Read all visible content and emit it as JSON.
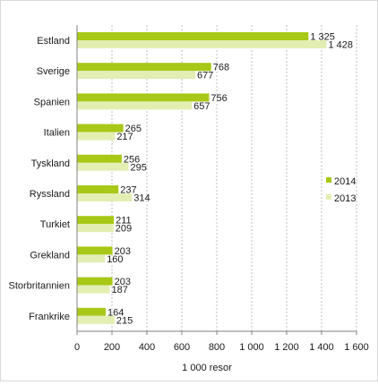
{
  "chart_data": {
    "type": "bar",
    "orientation": "horizontal",
    "categories": [
      "Estland",
      "Sverige",
      "Spanien",
      "Italien",
      "Tyskland",
      "Ryssland",
      "Turkiet",
      "Grekland",
      "Storbritannien",
      "Frankrike"
    ],
    "series": [
      {
        "name": "2014",
        "color": "#a8c818",
        "values": [
          1325,
          768,
          756,
          265,
          256,
          237,
          211,
          203,
          203,
          164
        ],
        "labels": [
          "1 325",
          "768",
          "756",
          "265",
          "256",
          "237",
          "211",
          "203",
          "203",
          "164"
        ]
      },
      {
        "name": "2013",
        "color": "#e3eeb2",
        "values": [
          1428,
          677,
          657,
          217,
          295,
          314,
          209,
          160,
          187,
          215
        ],
        "labels": [
          "1 428",
          "677",
          "657",
          "217",
          "295",
          "314",
          "209",
          "160",
          "187",
          "215"
        ]
      }
    ],
    "xlabel": "1 000  resor",
    "xlim": [
      0,
      1600
    ],
    "xticks": [
      0,
      200,
      400,
      600,
      800,
      1000,
      1200,
      1400,
      1600
    ],
    "xtick_labels": [
      "0",
      "200",
      "400",
      "600",
      "800",
      "1 000",
      "1 200",
      "1 400",
      "1 600"
    ],
    "grid": "vertical dashed",
    "legend": "right"
  }
}
